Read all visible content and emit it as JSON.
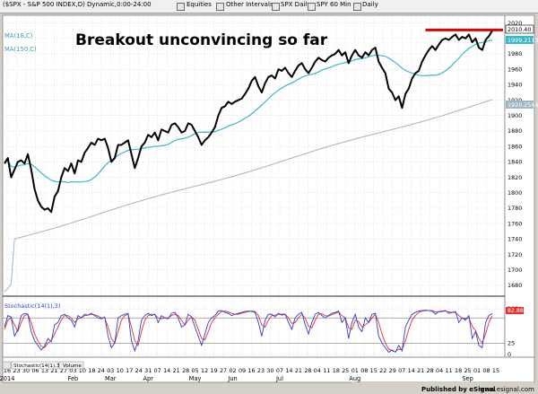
{
  "toolbar": {
    "symbol": "($SPX - S&P 500 INDEX,D) Dynamic,0:00-24:00",
    "tabs": [
      "Equities",
      "Other Intervals",
      "SPX Daily",
      "SPY 60 Min",
      "Daily"
    ]
  },
  "chart_data": {
    "type": "line",
    "annotation": "Breakout unconvincing so far",
    "legend": [
      "MA(18,C)",
      "MA(150,C)"
    ],
    "price_axis": {
      "ylim": [
        1666,
        2030
      ],
      "ticks": [
        1680,
        1700,
        1720,
        1740,
        1760,
        1780,
        1800,
        1820,
        1840,
        1860,
        1880,
        1900,
        1920,
        1940,
        1960,
        1980,
        2000,
        2020
      ]
    },
    "last_values": {
      "price": "2010.40",
      "ma18": "1999.21134",
      "ma150": "1920.25647"
    },
    "resistance_level": 2011,
    "x_labels": [
      "16",
      "23",
      "30",
      "06",
      "13",
      "21",
      "27",
      "03",
      "10",
      "18",
      "24",
      "03",
      "10",
      "17",
      "24",
      "31",
      "07",
      "14",
      "21",
      "28",
      "05",
      "12",
      "19",
      "27",
      "02",
      "09",
      "16",
      "23",
      "30",
      "07",
      "14",
      "21",
      "28",
      "04",
      "11",
      "18",
      "25",
      "01",
      "08",
      "15",
      "22",
      "29",
      "07",
      "14",
      "21",
      "28",
      "04",
      "11",
      "18",
      "25",
      "01",
      "08",
      "15"
    ],
    "months": [
      {
        "label": "2014",
        "at": 0
      },
      {
        "label": "Feb",
        "at": 7
      },
      {
        "label": "Mar",
        "at": 11
      },
      {
        "label": "Apr",
        "at": 15
      },
      {
        "label": "May",
        "at": 20
      },
      {
        "label": "Jun",
        "at": 24
      },
      {
        "label": "Jul",
        "at": 29
      },
      {
        "label": "Aug",
        "at": 37
      },
      {
        "label": "Sep",
        "at": 49
      }
    ],
    "price": [
      1838,
      1845,
      1820,
      1830,
      1840,
      1842,
      1838,
      1850,
      1830,
      1805,
      1790,
      1782,
      1778,
      1780,
      1775,
      1795,
      1802,
      1820,
      1832,
      1828,
      1838,
      1825,
      1842,
      1840,
      1852,
      1858,
      1865,
      1862,
      1870,
      1868,
      1870,
      1858,
      1840,
      1845,
      1862,
      1862,
      1865,
      1868,
      1850,
      1832,
      1845,
      1860,
      1865,
      1875,
      1872,
      1878,
      1868,
      1882,
      1880,
      1878,
      1888,
      1890,
      1885,
      1878,
      1880,
      1890,
      1888,
      1880,
      1872,
      1862,
      1868,
      1872,
      1878,
      1885,
      1900,
      1910,
      1912,
      1918,
      1915,
      1918,
      1920,
      1922,
      1928,
      1935,
      1945,
      1950,
      1938,
      1930,
      1942,
      1950,
      1952,
      1948,
      1960,
      1958,
      1962,
      1955,
      1950,
      1958,
      1965,
      1968,
      1960,
      1955,
      1962,
      1970,
      1975,
      1972,
      1970,
      1975,
      1978,
      1980,
      1985,
      1978,
      1982,
      1968,
      1978,
      1985,
      1978,
      1975,
      1982,
      1978,
      1985,
      1988,
      1970,
      1962,
      1955,
      1935,
      1930,
      1920,
      1925,
      1910,
      1928,
      1935,
      1948,
      1955,
      1958,
      1970,
      1978,
      1985,
      1990,
      1985,
      1992,
      1998,
      2000,
      1998,
      2002,
      2005,
      1998,
      2002,
      2000,
      2005,
      1995,
      2000,
      1988,
      1985,
      1998,
      2003,
      2010
    ],
    "stochastic": {
      "label": "Stochastic(14(1),3)",
      "ylim": [
        0,
        100
      ],
      "levels": [
        0,
        25,
        80,
        100
      ],
      "last": "82.884",
      "fast": [
        60,
        85,
        82,
        40,
        55,
        85,
        90,
        88,
        50,
        30,
        20,
        10,
        18,
        35,
        28,
        65,
        70,
        85,
        88,
        80,
        75,
        60,
        85,
        80,
        88,
        86,
        90,
        85,
        80,
        78,
        82,
        40,
        15,
        25,
        80,
        85,
        88,
        90,
        30,
        8,
        30,
        75,
        85,
        90,
        85,
        88,
        70,
        85,
        80,
        78,
        90,
        92,
        80,
        60,
        65,
        88,
        82,
        60,
        40,
        20,
        45,
        70,
        80,
        85,
        95,
        96,
        92,
        90,
        85,
        88,
        90,
        92,
        94,
        95,
        94,
        92,
        70,
        40,
        75,
        88,
        88,
        82,
        90,
        86,
        88,
        70,
        55,
        80,
        88,
        92,
        65,
        45,
        70,
        88,
        92,
        85,
        80,
        85,
        90,
        92,
        95,
        70,
        80,
        35,
        70,
        88,
        60,
        50,
        80,
        70,
        88,
        90,
        40,
        25,
        15,
        5,
        10,
        5,
        20,
        8,
        60,
        75,
        88,
        92,
        95,
        96,
        97,
        96,
        95,
        88,
        94,
        95,
        96,
        90,
        92,
        94,
        70,
        80,
        75,
        85,
        35,
        50,
        20,
        15,
        70,
        85,
        90
      ],
      "slow": [
        55,
        75,
        80,
        65,
        50,
        70,
        85,
        88,
        70,
        45,
        30,
        18,
        15,
        25,
        30,
        45,
        60,
        75,
        85,
        85,
        80,
        70,
        78,
        80,
        85,
        86,
        88,
        87,
        84,
        80,
        80,
        60,
        35,
        25,
        50,
        75,
        85,
        88,
        60,
        30,
        20,
        50,
        75,
        85,
        88,
        87,
        80,
        78,
        80,
        80,
        85,
        88,
        85,
        75,
        65,
        75,
        82,
        75,
        55,
        35,
        32,
        50,
        70,
        80,
        88,
        94,
        95,
        93,
        90,
        88,
        88,
        90,
        92,
        94,
        95,
        94,
        85,
        65,
        60,
        75,
        85,
        86,
        88,
        88,
        88,
        80,
        68,
        70,
        80,
        88,
        80,
        62,
        58,
        75,
        88,
        89,
        85,
        84,
        87,
        90,
        93,
        85,
        80,
        58,
        55,
        75,
        72,
        60,
        65,
        70,
        80,
        88,
        70,
        45,
        25,
        12,
        8,
        6,
        12,
        10,
        30,
        55,
        75,
        85,
        92,
        95,
        96,
        96,
        96,
        93,
        93,
        94,
        95,
        93,
        92,
        92,
        85,
        80,
        78,
        80,
        62,
        52,
        35,
        25,
        45,
        70,
        85
      ]
    },
    "bottom_tabs": [
      "Stochastic(14(1),3)",
      "Volume"
    ],
    "footer": "Published by eSignal",
    "footer_url": "www.esignal.com"
  }
}
